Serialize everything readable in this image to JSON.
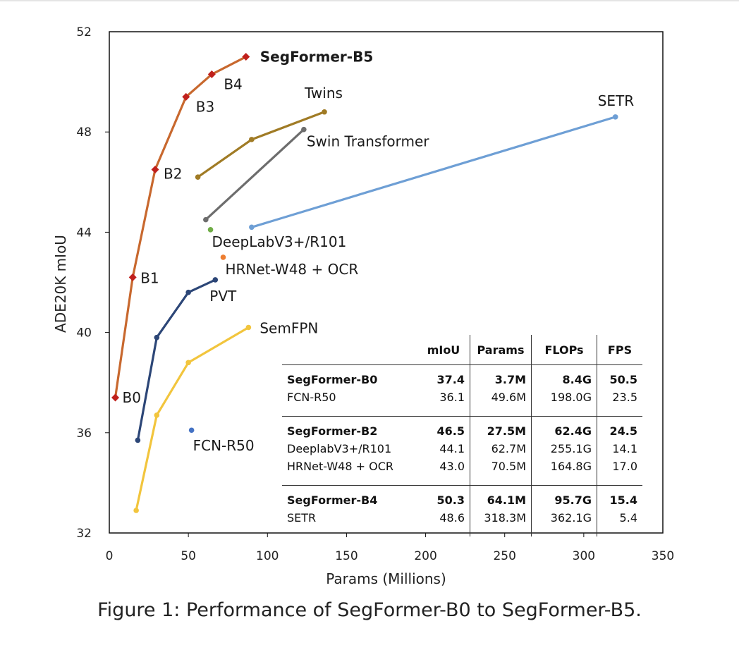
{
  "caption": "Figure 1: Performance of SegFormer-B0 to SegFormer-B5.",
  "chart_data": {
    "type": "line",
    "xlabel": "Params (Millions)",
    "ylabel": "ADE20K mIoU",
    "xlim": [
      0,
      350
    ],
    "ylim": [
      32,
      52
    ],
    "xticks": [
      "0",
      "50",
      "100",
      "150",
      "200",
      "250",
      "300",
      "350"
    ],
    "yticks": [
      "32",
      "36",
      "40",
      "44",
      "48",
      "52"
    ],
    "grid": false,
    "series": [
      {
        "name": "SegFormer",
        "color": "#c8682e",
        "marker": "diamond",
        "marker_color": "#c0201c",
        "points": [
          {
            "x": 3.8,
            "y": 37.4,
            "label": "B0"
          },
          {
            "x": 14.8,
            "y": 42.2,
            "label": "B1"
          },
          {
            "x": 29.0,
            "y": 46.5,
            "label": "B2"
          },
          {
            "x": 48.5,
            "y": 49.4,
            "label": "B3"
          },
          {
            "x": 64.8,
            "y": 50.3,
            "label": "B4"
          },
          {
            "x": 86.4,
            "y": 51.0,
            "label": "SegFormer-B5"
          }
        ]
      },
      {
        "name": "Twins",
        "color": "#a07b25",
        "marker": "circle",
        "points": [
          {
            "x": 56,
            "y": 46.2
          },
          {
            "x": 90,
            "y": 47.7
          },
          {
            "x": 136,
            "y": 48.8
          }
        ]
      },
      {
        "name": "Swin Transformer",
        "color": "#6d6d6d",
        "marker": "circle",
        "points": [
          {
            "x": 61,
            "y": 44.5
          },
          {
            "x": 123,
            "y": 48.1
          }
        ]
      },
      {
        "name": "SETR",
        "color": "#6e9fd5",
        "marker": "circle",
        "points": [
          {
            "x": 90,
            "y": 44.2
          },
          {
            "x": 320,
            "y": 48.6
          }
        ]
      },
      {
        "name": "PVT",
        "color": "#2c4677",
        "marker": "circle",
        "points": [
          {
            "x": 18,
            "y": 35.7
          },
          {
            "x": 30,
            "y": 39.8
          },
          {
            "x": 50,
            "y": 41.6
          },
          {
            "x": 67,
            "y": 42.1
          }
        ]
      },
      {
        "name": "SemFPN",
        "color": "#f2c53d",
        "marker": "circle",
        "points": [
          {
            "x": 17,
            "y": 32.9
          },
          {
            "x": 30,
            "y": 36.7
          },
          {
            "x": 50,
            "y": 38.8
          },
          {
            "x": 88,
            "y": 40.2
          }
        ]
      },
      {
        "name": "DeepLabV3+/R101",
        "color": "#70ad47",
        "marker": "circle",
        "points": [
          {
            "x": 64,
            "y": 44.1
          }
        ]
      },
      {
        "name": "HRNet-W48 + OCR",
        "color": "#ed7d31",
        "marker": "circle",
        "points": [
          {
            "x": 72,
            "y": 43.0
          }
        ]
      },
      {
        "name": "FCN-R50",
        "color": "#4472c4",
        "marker": "circle",
        "points": [
          {
            "x": 52,
            "y": 36.1
          }
        ]
      }
    ],
    "table": {
      "headers": [
        "",
        "mIoU",
        "Params",
        "FLOPs",
        "FPS"
      ],
      "rows": [
        {
          "bold": true,
          "cells": [
            "SegFormer-B0",
            "37.4",
            "3.7M",
            "8.4G",
            "50.5"
          ]
        },
        {
          "bold": false,
          "cells": [
            "FCN-R50",
            "36.1",
            "49.6M",
            "198.0G",
            "23.5"
          ]
        },
        {
          "bold": true,
          "cells": [
            "SegFormer-B2",
            "46.5",
            "27.5M",
            "62.4G",
            "24.5"
          ]
        },
        {
          "bold": false,
          "cells": [
            "DeeplabV3+/R101",
            "44.1",
            "62.7M",
            "255.1G",
            "14.1"
          ]
        },
        {
          "bold": false,
          "cells": [
            "HRNet-W48 + OCR",
            "43.0",
            "70.5M",
            "164.8G",
            "17.0"
          ]
        },
        {
          "bold": true,
          "cells": [
            "SegFormer-B4",
            "50.3",
            "64.1M",
            "95.7G",
            "15.4"
          ]
        },
        {
          "bold": false,
          "cells": [
            "SETR",
            "48.6",
            "318.3M",
            "362.1G",
            "5.4"
          ]
        }
      ]
    }
  }
}
